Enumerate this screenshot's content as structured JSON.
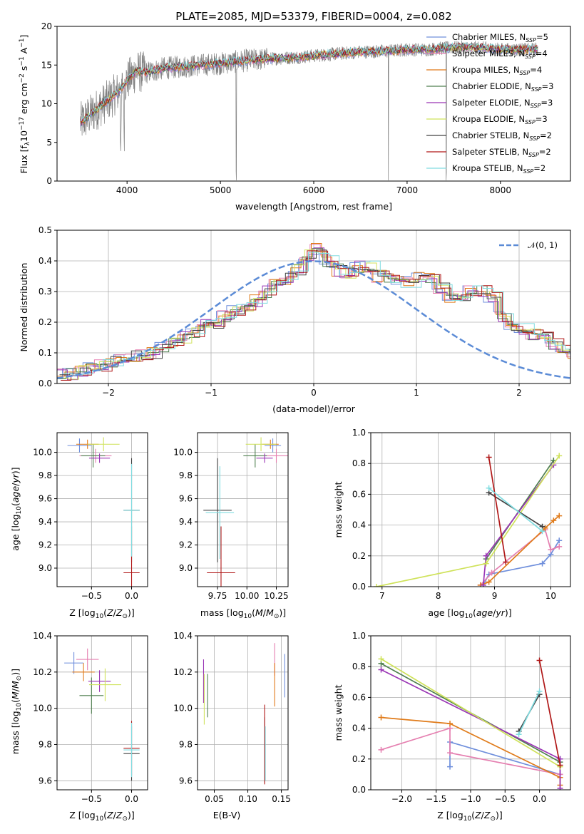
{
  "colors": {
    "chabrier_miles": "#6f8fdc",
    "salpeter_miles": "#e57fb0",
    "kroupa_miles": "#e07b1a",
    "chabrier_elodie": "#4f7f4f",
    "salpeter_elodie": "#9a35b5",
    "kroupa_elodie": "#cfe25a",
    "chabrier_stelib": "#404040",
    "salpeter_stelib": "#b01818",
    "kroupa_stelib": "#80dce0",
    "data": "#808080",
    "normal": "#5b8bd6"
  },
  "chart_data": [
    {
      "id": "spectrum",
      "type": "line",
      "title": "PLATE=2085, MJD=53379, FIBERID=0004, z=0.082",
      "xlabel": "wavelength [Angstrom, rest frame]",
      "ylabel": "Flux [f_λ10^-17 erg cm^-2 s^-1 A^-1]",
      "xlim": [
        3250,
        8750
      ],
      "ylim": [
        0,
        20
      ],
      "xticks": [
        4000,
        5000,
        6000,
        7000,
        8000
      ],
      "yticks": [
        0,
        5,
        10,
        15,
        20
      ],
      "grid": false,
      "legend_position": "right",
      "series": [
        {
          "name": "Chabrier MILES, N_SSP=5",
          "label_base": "Chabrier MILES, N",
          "label_end": "=5",
          "color_key": "chabrier_miles"
        },
        {
          "name": "Salpeter MILES, N_SSP=4",
          "label_base": "Salpeter MILES, N",
          "label_end": "=4",
          "color_key": "salpeter_miles"
        },
        {
          "name": "Kroupa MILES, N_SSP=4",
          "label_base": "Kroupa MILES, N",
          "label_end": "=4",
          "color_key": "kroupa_miles"
        },
        {
          "name": "Chabrier ELODIE, N_SSP=3",
          "label_base": "Chabrier ELODIE, N",
          "label_end": "=3",
          "color_key": "chabrier_elodie"
        },
        {
          "name": "Salpeter ELODIE, N_SSP=3",
          "label_base": "Salpeter ELODIE, N",
          "label_end": "=3",
          "color_key": "salpeter_elodie"
        },
        {
          "name": "Kroupa ELODIE, N_SSP=3",
          "label_base": "Kroupa ELODIE, N",
          "label_end": "=3",
          "color_key": "kroupa_elodie"
        },
        {
          "name": "Chabrier STELIB, N_SSP=2",
          "label_base": "Chabrier STELIB, N",
          "label_end": "=2",
          "color_key": "chabrier_stelib"
        },
        {
          "name": "Salpeter STELIB, N_SSP=2",
          "label_base": "Salpeter STELIB, N",
          "label_end": "=2",
          "color_key": "salpeter_stelib"
        },
        {
          "name": "Kroupa STELIB, N_SSP=2",
          "label_base": "Kroupa STELIB, N",
          "label_end": "=2",
          "color_key": "kroupa_stelib"
        }
      ],
      "data_trend": {
        "wavelength": [
          3500,
          3600,
          3700,
          3800,
          3900,
          4000,
          4100,
          4200,
          4400,
          4600,
          4800,
          5000,
          5200,
          5500,
          5800,
          6000,
          6300,
          6500,
          6800,
          7000,
          7200,
          7400,
          7600,
          7800,
          8000,
          8200,
          8400
        ],
        "flux": [
          7.5,
          8.5,
          9.5,
          10.5,
          11.5,
          13.0,
          14.2,
          14.0,
          14.6,
          14.8,
          15.0,
          15.2,
          15.5,
          15.8,
          16.0,
          16.2,
          16.5,
          16.7,
          16.8,
          17.0,
          17.0,
          17.2,
          17.3,
          17.2,
          17.0,
          17.0,
          17.0
        ]
      }
    },
    {
      "id": "residuals",
      "type": "line",
      "xlabel": "(data-model)/error",
      "ylabel": "Normed distribution",
      "xlim": [
        -2.5,
        2.5
      ],
      "ylim": [
        0,
        0.5
      ],
      "xticks": [
        -2,
        -1,
        0,
        1,
        2
      ],
      "yticks": [
        0.0,
        0.1,
        0.2,
        0.3,
        0.4,
        0.5
      ],
      "grid": true,
      "legend_position": "top-right",
      "legend_label": "𝒩(0, 1)",
      "histogram_bin_width": 0.1,
      "histogram_profile": [
        0.03,
        0.03,
        0.04,
        0.05,
        0.06,
        0.07,
        0.08,
        0.09,
        0.09,
        0.1,
        0.12,
        0.13,
        0.15,
        0.17,
        0.19,
        0.2,
        0.22,
        0.24,
        0.25,
        0.27,
        0.3,
        0.32,
        0.34,
        0.37,
        0.42,
        0.44,
        0.4,
        0.37,
        0.36,
        0.38,
        0.38,
        0.35,
        0.34,
        0.33,
        0.33,
        0.35,
        0.34,
        0.31,
        0.28,
        0.29,
        0.3,
        0.3,
        0.28,
        0.22,
        0.19,
        0.18,
        0.16,
        0.15,
        0.13,
        0.11,
        0.1
      ]
    },
    {
      "id": "Z_vs_age",
      "type": "scatter",
      "xlabel": "Z [log10(Z/Z⊙)]",
      "ylabel": "age  [log10(age/yr)]",
      "xlim": [
        -0.93,
        0.2
      ],
      "ylim": [
        8.84,
        10.17
      ],
      "xticks": [
        -0.5,
        0.0
      ],
      "yticks": [
        9.0,
        9.2,
        9.4,
        9.6,
        9.8,
        10.0
      ],
      "points": [
        {
          "color_key": "chabrier_miles",
          "x": -0.65,
          "y": 10.06,
          "ex": 0.15,
          "ey": 0.06
        },
        {
          "color_key": "salpeter_miles",
          "x": -0.45,
          "y": 9.97,
          "ex": 0.2,
          "ey": 0.06
        },
        {
          "color_key": "kroupa_miles",
          "x": -0.55,
          "y": 10.07,
          "ex": 0.14,
          "ey": 0.04
        },
        {
          "color_key": "chabrier_elodie",
          "x": -0.48,
          "y": 9.97,
          "ex": 0.15,
          "ey": 0.1
        },
        {
          "color_key": "salpeter_elodie",
          "x": -0.4,
          "y": 9.95,
          "ex": 0.13,
          "ey": 0.04
        },
        {
          "color_key": "kroupa_elodie",
          "x": -0.35,
          "y": 10.07,
          "ex": 0.2,
          "ey": 0.06
        },
        {
          "color_key": "chabrier_stelib",
          "x": 0.0,
          "y": 9.5,
          "ex": 0.1,
          "ey": 0.45
        },
        {
          "color_key": "salpeter_stelib",
          "x": 0.0,
          "y": 8.96,
          "ex": 0.1,
          "ey": 0.4
        },
        {
          "color_key": "kroupa_stelib",
          "x": 0.0,
          "y": 9.5,
          "ex": 0.1,
          "ey": 0.4
        }
      ]
    },
    {
      "id": "mass_vs_age",
      "type": "scatter",
      "xlabel": "mass [log10(M/M⊙)]",
      "ylabel": "",
      "xlim": [
        9.58,
        10.35
      ],
      "ylim": [
        8.84,
        10.17
      ],
      "xticks": [
        9.75,
        10.0,
        10.25
      ],
      "yticks": [
        9.0,
        9.2,
        9.4,
        9.6,
        9.8,
        10.0
      ],
      "points": [
        {
          "color_key": "chabrier_miles",
          "x": 10.22,
          "y": 10.06,
          "ex": 0.07,
          "ey": 0.06
        },
        {
          "color_key": "salpeter_miles",
          "x": 10.25,
          "y": 9.97,
          "ex": 0.1,
          "ey": 0.06
        },
        {
          "color_key": "kroupa_miles",
          "x": 10.2,
          "y": 10.07,
          "ex": 0.07,
          "ey": 0.04
        },
        {
          "color_key": "chabrier_elodie",
          "x": 10.07,
          "y": 9.97,
          "ex": 0.1,
          "ey": 0.1
        },
        {
          "color_key": "salpeter_elodie",
          "x": 10.15,
          "y": 9.95,
          "ex": 0.07,
          "ey": 0.04
        },
        {
          "color_key": "kroupa_elodie",
          "x": 10.12,
          "y": 10.07,
          "ex": 0.13,
          "ey": 0.06
        },
        {
          "color_key": "chabrier_stelib",
          "x": 9.75,
          "y": 9.5,
          "ex": 0.12,
          "ey": 0.45
        },
        {
          "color_key": "salpeter_stelib",
          "x": 9.78,
          "y": 8.96,
          "ex": 0.12,
          "ey": 0.4
        },
        {
          "color_key": "kroupa_stelib",
          "x": 9.77,
          "y": 9.48,
          "ex": 0.12,
          "ey": 0.4
        }
      ]
    },
    {
      "id": "age_vs_weight",
      "type": "line",
      "xlabel": "age  [log10(age/yr)]",
      "ylabel": "mass weight",
      "xlim": [
        6.8,
        10.35
      ],
      "ylim": [
        0,
        1.0
      ],
      "xticks": [
        7,
        8,
        9,
        10
      ],
      "yticks": [
        0.0,
        0.2,
        0.4,
        0.6,
        0.8,
        1.0
      ],
      "grid": true,
      "series": [
        {
          "color_key": "chabrier_miles",
          "x": [
            10.15,
            10.0,
            9.85,
            8.9,
            8.8
          ],
          "y": [
            0.3,
            0.21,
            0.15,
            0.08,
            0.01
          ]
        },
        {
          "color_key": "salpeter_miles",
          "x": [
            10.15,
            10.0,
            9.9,
            8.95,
            8.75
          ],
          "y": [
            0.26,
            0.24,
            0.37,
            0.09,
            0.01
          ]
        },
        {
          "color_key": "kroupa_miles",
          "x": [
            10.15,
            10.05,
            9.9,
            8.9,
            8.75
          ],
          "y": [
            0.46,
            0.43,
            0.38,
            0.03,
            0.01
          ]
        },
        {
          "color_key": "chabrier_elodie",
          "x": [
            10.05,
            8.85
          ],
          "y": [
            0.82,
            0.18
          ]
        },
        {
          "color_key": "salpeter_elodie",
          "x": [
            10.05,
            8.85,
            8.8
          ],
          "y": [
            0.79,
            0.2,
            0.01
          ]
        },
        {
          "color_key": "kroupa_elodie",
          "x": [
            10.15,
            8.85,
            6.9
          ],
          "y": [
            0.85,
            0.15,
            0.0
          ]
        },
        {
          "color_key": "chabrier_stelib",
          "x": [
            8.9,
            9.85
          ],
          "y": [
            0.61,
            0.39
          ]
        },
        {
          "color_key": "salpeter_stelib",
          "x": [
            8.9,
            9.2
          ],
          "y": [
            0.84,
            0.16
          ]
        },
        {
          "color_key": "kroupa_stelib",
          "x": [
            8.9,
            9.85
          ],
          "y": [
            0.64,
            0.36
          ]
        }
      ]
    },
    {
      "id": "Z_vs_mass",
      "type": "scatter",
      "xlabel": "Z [log10(Z/Z⊙)]",
      "ylabel": "mass [log10(M/M⊙)]",
      "xlim": [
        -0.93,
        0.2
      ],
      "ylim": [
        9.55,
        10.4
      ],
      "xticks": [
        -0.5,
        0.0
      ],
      "yticks": [
        9.6,
        9.8,
        10.0,
        10.2,
        10.4
      ],
      "points": [
        {
          "color_key": "chabrier_miles",
          "x": -0.72,
          "y": 10.25,
          "ex": 0.12,
          "ey": 0.06
        },
        {
          "color_key": "salpeter_miles",
          "x": -0.55,
          "y": 10.27,
          "ex": 0.14,
          "ey": 0.06
        },
        {
          "color_key": "kroupa_miles",
          "x": -0.6,
          "y": 10.2,
          "ex": 0.14,
          "ey": 0.05
        },
        {
          "color_key": "chabrier_elodie",
          "x": -0.5,
          "y": 10.07,
          "ex": 0.15,
          "ey": 0.1
        },
        {
          "color_key": "salpeter_elodie",
          "x": -0.4,
          "y": 10.15,
          "ex": 0.14,
          "ey": 0.06
        },
        {
          "color_key": "kroupa_elodie",
          "x": -0.33,
          "y": 10.13,
          "ex": 0.2,
          "ey": 0.09
        },
        {
          "color_key": "chabrier_stelib",
          "x": 0.0,
          "y": 9.75,
          "ex": 0.1,
          "ey": 0.15
        },
        {
          "color_key": "salpeter_stelib",
          "x": 0.0,
          "y": 9.78,
          "ex": 0.1,
          "ey": 0.15
        },
        {
          "color_key": "kroupa_stelib",
          "x": 0.0,
          "y": 9.77,
          "ex": 0.1,
          "ey": 0.15
        }
      ]
    },
    {
      "id": "ebv_vs_mass",
      "type": "scatter",
      "xlabel": "E(B-V)",
      "ylabel": "",
      "xlim": [
        0.025,
        0.16
      ],
      "ylim": [
        9.55,
        10.4
      ],
      "xticks": [
        0.05,
        0.1,
        0.15
      ],
      "yticks": [
        9.6,
        9.8,
        10.0,
        10.2,
        10.4
      ],
      "points": [
        {
          "color_key": "chabrier_miles",
          "x": 0.155,
          "y": 10.18,
          "ex": 0,
          "ey": 0.12
        },
        {
          "color_key": "salpeter_miles",
          "x": 0.14,
          "y": 10.27,
          "ex": 0,
          "ey": 0.09
        },
        {
          "color_key": "kroupa_miles",
          "x": 0.14,
          "y": 10.13,
          "ex": 0,
          "ey": 0.12
        },
        {
          "color_key": "chabrier_elodie",
          "x": 0.04,
          "y": 10.07,
          "ex": 0,
          "ey": 0.12
        },
        {
          "color_key": "salpeter_elodie",
          "x": 0.034,
          "y": 10.15,
          "ex": 0,
          "ey": 0.12
        },
        {
          "color_key": "kroupa_elodie",
          "x": 0.035,
          "y": 10.05,
          "ex": 0,
          "ey": 0.14
        },
        {
          "color_key": "chabrier_stelib",
          "x": 0.125,
          "y": 9.77,
          "ex": 0,
          "ey": 0.18
        },
        {
          "color_key": "salpeter_stelib",
          "x": 0.125,
          "y": 9.8,
          "ex": 0,
          "ey": 0.22
        },
        {
          "color_key": "kroupa_stelib",
          "x": 0.126,
          "y": 9.75,
          "ex": 0,
          "ey": 0.15
        }
      ]
    },
    {
      "id": "Z_vs_weight",
      "type": "line",
      "xlabel": "Z [log10(Z/Z⊙)]",
      "ylabel": "mass weight",
      "xlim": [
        -2.45,
        0.45
      ],
      "ylim": [
        0,
        1.0
      ],
      "xticks": [
        -2.0,
        -1.5,
        -1.0,
        -0.5,
        0.0
      ],
      "yticks": [
        0.0,
        0.2,
        0.4,
        0.6,
        0.8,
        1.0
      ],
      "grid": true,
      "series": [
        {
          "color_key": "chabrier_miles",
          "x": [
            -1.3,
            -1.3,
            0.3,
            0.3
          ],
          "y": [
            0.15,
            0.31,
            0.1,
            0.2
          ]
        },
        {
          "color_key": "salpeter_miles",
          "x": [
            -2.3,
            -1.3,
            -1.3,
            0.3
          ],
          "y": [
            0.26,
            0.4,
            0.24,
            0.1
          ]
        },
        {
          "color_key": "kroupa_miles",
          "x": [
            -2.3,
            -1.3,
            0.3,
            0.3
          ],
          "y": [
            0.47,
            0.43,
            0.08,
            0.03
          ]
        },
        {
          "color_key": "chabrier_elodie",
          "x": [
            -2.3,
            0.3
          ],
          "y": [
            0.82,
            0.18
          ]
        },
        {
          "color_key": "salpeter_elodie",
          "x": [
            -2.3,
            0.3,
            0.3
          ],
          "y": [
            0.78,
            0.2,
            0.01
          ]
        },
        {
          "color_key": "kroupa_elodie",
          "x": [
            -2.3,
            0.3
          ],
          "y": [
            0.85,
            0.15
          ]
        },
        {
          "color_key": "chabrier_stelib",
          "x": [
            -0.3,
            0.0
          ],
          "y": [
            0.38,
            0.62
          ]
        },
        {
          "color_key": "salpeter_stelib",
          "x": [
            0.0,
            0.3
          ],
          "y": [
            0.84,
            0.16
          ]
        },
        {
          "color_key": "kroupa_stelib",
          "x": [
            -0.3,
            0.0
          ],
          "y": [
            0.36,
            0.64
          ]
        }
      ]
    }
  ]
}
